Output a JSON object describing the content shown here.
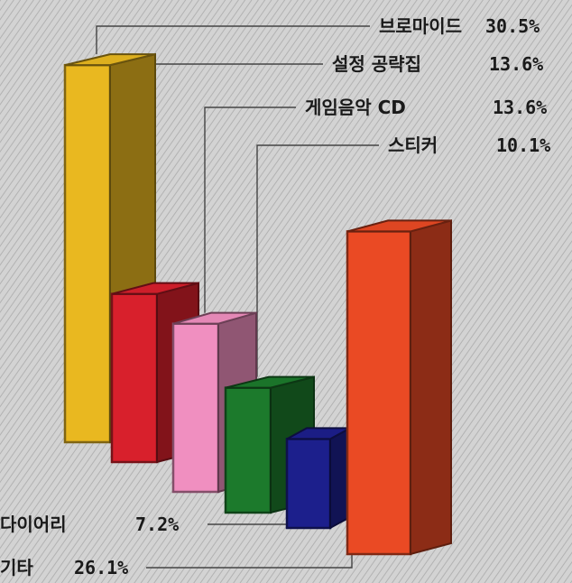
{
  "chart_data": {
    "type": "bar",
    "title": "",
    "xlabel": "",
    "ylabel": "",
    "unit": "%",
    "ylim": [
      0,
      32
    ],
    "categories": [
      "브로마이드",
      "설정 공략집",
      "게임음악 CD",
      "스티커",
      "다이어리",
      "기타"
    ],
    "values": [
      30.5,
      13.6,
      13.6,
      10.1,
      7.2,
      26.1
    ],
    "value_labels": [
      "30.5%",
      "13.6%",
      "13.6%",
      "10.1%",
      "7.2%",
      "26.1%"
    ],
    "colors": [
      "#e9b820",
      "#d8202c",
      "#f08fc0",
      "#1c7a2c",
      "#1c1f8c",
      "#ea4a24"
    ],
    "legend": "callout-labels",
    "grid": false
  }
}
